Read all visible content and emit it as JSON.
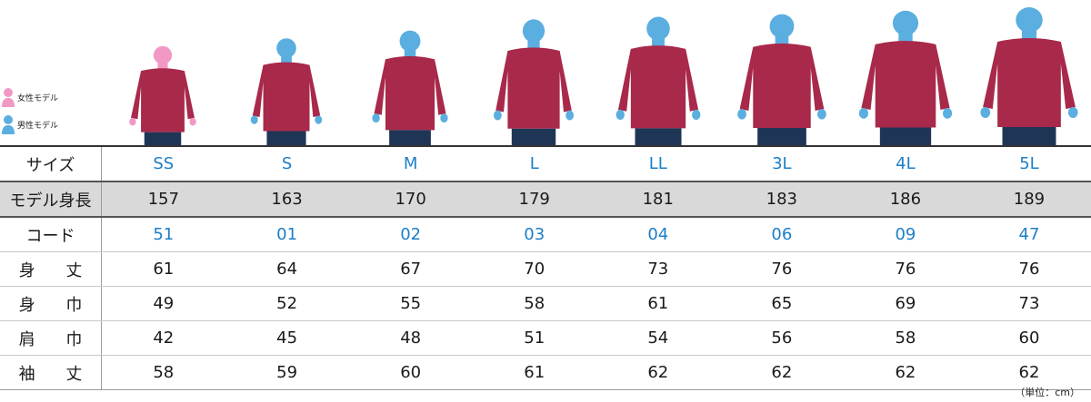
{
  "legend": {
    "female_label": "女性モデル",
    "male_label": "男性モデル"
  },
  "colors": {
    "female_icon": "#f199c4",
    "male_icon": "#5aaee0",
    "sweater": "#a8294a",
    "jeans": "#1f3556",
    "accent_text": "#1c7ec8",
    "shaded_row": "#d9d9d9"
  },
  "table": {
    "rows": [
      {
        "label": "サイズ",
        "values": [
          "SS",
          "S",
          "M",
          "L",
          "LL",
          "3L",
          "4L",
          "5L"
        ],
        "blue": true
      },
      {
        "label": "モデル身長",
        "values": [
          "157",
          "163",
          "170",
          "179",
          "181",
          "183",
          "186",
          "189"
        ],
        "shaded": true
      },
      {
        "label": "コード",
        "values": [
          "51",
          "01",
          "02",
          "03",
          "04",
          "06",
          "09",
          "47"
        ],
        "blue": true
      },
      {
        "label": "身 丈",
        "values": [
          "61",
          "64",
          "67",
          "70",
          "73",
          "76",
          "76",
          "76"
        ],
        "spaced": true
      },
      {
        "label": "身 巾",
        "values": [
          "49",
          "52",
          "55",
          "58",
          "61",
          "65",
          "69",
          "73"
        ],
        "spaced": true
      },
      {
        "label": "肩 巾",
        "values": [
          "42",
          "45",
          "48",
          "51",
          "54",
          "56",
          "58",
          "60"
        ],
        "spaced": true
      },
      {
        "label": "袖 丈",
        "values": [
          "58",
          "59",
          "60",
          "61",
          "62",
          "62",
          "62",
          "62"
        ],
        "spaced": true
      }
    ]
  },
  "models": [
    {
      "gender": "female",
      "height": 157
    },
    {
      "gender": "male",
      "height": 163
    },
    {
      "gender": "male",
      "height": 170
    },
    {
      "gender": "male",
      "height": 179
    },
    {
      "gender": "male",
      "height": 181
    },
    {
      "gender": "male",
      "height": 183
    },
    {
      "gender": "male",
      "height": 186
    },
    {
      "gender": "male",
      "height": 189
    }
  ],
  "unit_note": "（単位：cm）"
}
